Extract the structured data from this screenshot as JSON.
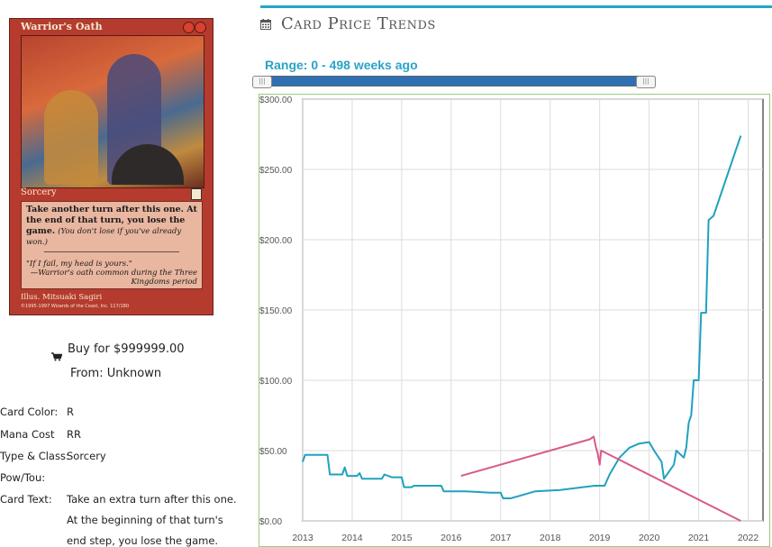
{
  "card": {
    "name": "Warrior's Oath",
    "type_line": "Sorcery",
    "rules_text": "Take another turn after this one. At the end of that turn, you lose the game.",
    "reminder_text": "(You don't lose if you've already won.)",
    "flavor_text": "\"If I fail, my head is yours.\"",
    "flavor_attribution": "—Warrior's oath common during the Three Kingdoms period",
    "illustrator": "Illus. Mitsuaki Sagiri",
    "copyright": "©1995-1997 Wizards of the Coast, Inc. 117/180"
  },
  "purchase": {
    "buy_label": "Buy for $999999.00",
    "from_label": "From: Unknown",
    "cart_icon": "cart-icon"
  },
  "attributes": [
    {
      "key": "Card Color:",
      "value": "R"
    },
    {
      "key": "Mana Cost",
      "value": "RR"
    },
    {
      "key": "Type & Class:",
      "value": "Sorcery"
    },
    {
      "key": "Pow/Tou:",
      "value": ""
    },
    {
      "key": "Card Text:",
      "value": "Take an extra turn after this one."
    },
    {
      "key": "",
      "value": "At the beginning of that turn's"
    },
    {
      "key": "",
      "value": "end step, you lose the game."
    }
  ],
  "trends": {
    "title": "Card Price Trends",
    "icon": "calendar-icon",
    "range_label": "Range: 0 - 498 weeks ago",
    "accent_color": "#25a5c7"
  },
  "chart_data": {
    "type": "line",
    "xlim": [
      2013,
      2022.3
    ],
    "ylim": [
      0,
      300
    ],
    "x_ticks": [
      "2013",
      "2014",
      "2015",
      "2016",
      "2017",
      "2018",
      "2019",
      "2020",
      "2021",
      "2022"
    ],
    "y_ticks": [
      "$0.00",
      "$50.00",
      "$100.00",
      "$150.00",
      "$200.00",
      "$250.00",
      "$300.00"
    ],
    "grid": true,
    "series": [
      {
        "color": "#1fa2bd",
        "points": [
          [
            2013.0,
            42
          ],
          [
            2013.05,
            47
          ],
          [
            2013.5,
            47
          ],
          [
            2013.55,
            33
          ],
          [
            2013.8,
            33
          ],
          [
            2013.85,
            38
          ],
          [
            2013.9,
            32
          ],
          [
            2014.1,
            32
          ],
          [
            2014.15,
            34
          ],
          [
            2014.2,
            30
          ],
          [
            2014.6,
            30
          ],
          [
            2014.65,
            33
          ],
          [
            2014.8,
            31
          ],
          [
            2015.0,
            31
          ],
          [
            2015.05,
            24
          ],
          [
            2015.2,
            24
          ],
          [
            2015.25,
            25
          ],
          [
            2015.8,
            25
          ],
          [
            2015.85,
            21
          ],
          [
            2016.3,
            21
          ],
          [
            2016.8,
            20
          ],
          [
            2017.0,
            20
          ],
          [
            2017.05,
            16
          ],
          [
            2017.2,
            16
          ],
          [
            2017.4,
            18
          ],
          [
            2017.7,
            21
          ],
          [
            2018.2,
            22
          ],
          [
            2018.9,
            25
          ],
          [
            2019.1,
            25
          ],
          [
            2019.2,
            33
          ],
          [
            2019.4,
            45
          ],
          [
            2019.6,
            52
          ],
          [
            2019.8,
            55
          ],
          [
            2020.0,
            56
          ],
          [
            2020.1,
            50
          ],
          [
            2020.25,
            42
          ],
          [
            2020.3,
            30
          ],
          [
            2020.4,
            35
          ],
          [
            2020.5,
            40
          ],
          [
            2020.55,
            50
          ],
          [
            2020.7,
            45
          ],
          [
            2020.75,
            52
          ],
          [
            2020.8,
            70
          ],
          [
            2020.85,
            75
          ],
          [
            2020.9,
            100
          ],
          [
            2021.0,
            100
          ],
          [
            2021.05,
            148
          ],
          [
            2021.15,
            148
          ],
          [
            2021.2,
            214
          ],
          [
            2021.3,
            217
          ],
          [
            2021.85,
            274
          ]
        ]
      },
      {
        "color": "#d75a8c",
        "points": [
          [
            2016.2,
            32
          ],
          [
            2018.8,
            58
          ],
          [
            2018.88,
            60
          ],
          [
            2018.92,
            53
          ],
          [
            2018.96,
            48
          ],
          [
            2019.0,
            40
          ],
          [
            2019.03,
            50
          ],
          [
            2021.85,
            0
          ]
        ]
      }
    ]
  }
}
